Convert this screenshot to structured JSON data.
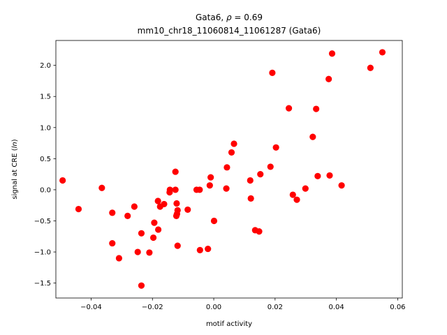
{
  "chart_data": {
    "type": "scatter",
    "title_line1": "Gata6, ",
    "title_rho": "ρ",
    "title_line1_rest": " = 0.69",
    "title_line2": "mm10_chr18_11060814_11061287 (Gata6)",
    "xlabel": "motif activity",
    "ylabel_prefix": "signal at CRE (",
    "ylabel_italic": "ln",
    "ylabel_suffix": ")",
    "xlim": [
      -0.0515,
      0.0615
    ],
    "ylim": [
      -1.74,
      2.4
    ],
    "xticks": [
      -0.04,
      -0.02,
      0.0,
      0.02,
      0.04,
      0.06
    ],
    "xtick_labels": [
      "−0.04",
      "−0.02",
      "0.00",
      "0.02",
      "0.04",
      "0.06"
    ],
    "yticks": [
      -1.5,
      -1.0,
      -0.5,
      0.0,
      0.5,
      1.0,
      1.5,
      2.0
    ],
    "ytick_labels": [
      "−1.5",
      "−1.0",
      "−0.5",
      "0.0",
      "0.5",
      "1.0",
      "1.5",
      "2.0"
    ],
    "grid": false,
    "marker_color": "#ff0000",
    "points": [
      {
        "x": -0.0493,
        "y": 0.15
      },
      {
        "x": -0.0441,
        "y": -0.31
      },
      {
        "x": -0.0365,
        "y": 0.03
      },
      {
        "x": -0.0331,
        "y": -0.37
      },
      {
        "x": -0.0331,
        "y": -0.86
      },
      {
        "x": -0.0309,
        "y": -1.1
      },
      {
        "x": -0.0281,
        "y": -0.42
      },
      {
        "x": -0.0259,
        "y": -0.27
      },
      {
        "x": -0.0248,
        "y": -1.0
      },
      {
        "x": -0.0236,
        "y": -0.7
      },
      {
        "x": -0.0236,
        "y": -1.54
      },
      {
        "x": -0.021,
        "y": -1.01
      },
      {
        "x": -0.0197,
        "y": -0.77
      },
      {
        "x": -0.0194,
        "y": -0.53
      },
      {
        "x": -0.0182,
        "y": -0.18
      },
      {
        "x": -0.0181,
        "y": -0.64
      },
      {
        "x": -0.0175,
        "y": -0.27
      },
      {
        "x": -0.0162,
        "y": -0.23
      },
      {
        "x": -0.0144,
        "y": -0.04
      },
      {
        "x": -0.0143,
        "y": 0.0
      },
      {
        "x": -0.0125,
        "y": 0.0
      },
      {
        "x": -0.0125,
        "y": 0.29
      },
      {
        "x": -0.0122,
        "y": -0.42
      },
      {
        "x": -0.0121,
        "y": -0.22
      },
      {
        "x": -0.012,
        "y": -0.39
      },
      {
        "x": -0.0118,
        "y": -0.33
      },
      {
        "x": -0.0118,
        "y": -0.9
      },
      {
        "x": -0.0085,
        "y": -0.32
      },
      {
        "x": -0.0056,
        "y": 0.0
      },
      {
        "x": -0.0046,
        "y": 0.0
      },
      {
        "x": -0.0045,
        "y": -0.97
      },
      {
        "x": -0.0019,
        "y": -0.95
      },
      {
        "x": -0.0013,
        "y": 0.07
      },
      {
        "x": -0.001,
        "y": 0.2
      },
      {
        "x": 0.0001,
        "y": -0.5
      },
      {
        "x": 0.0041,
        "y": 0.02
      },
      {
        "x": 0.0043,
        "y": 0.36
      },
      {
        "x": 0.0058,
        "y": 0.6
      },
      {
        "x": 0.0066,
        "y": 0.74
      },
      {
        "x": 0.0119,
        "y": 0.15
      },
      {
        "x": 0.0121,
        "y": -0.14
      },
      {
        "x": 0.0135,
        "y": -0.65
      },
      {
        "x": 0.0148,
        "y": -0.67
      },
      {
        "x": 0.0152,
        "y": 0.25
      },
      {
        "x": 0.0185,
        "y": 0.37
      },
      {
        "x": 0.0191,
        "y": 1.88
      },
      {
        "x": 0.0203,
        "y": 0.68
      },
      {
        "x": 0.0245,
        "y": 1.31
      },
      {
        "x": 0.0258,
        "y": -0.08
      },
      {
        "x": 0.0271,
        "y": -0.16
      },
      {
        "x": 0.0299,
        "y": 0.02
      },
      {
        "x": 0.0323,
        "y": 0.85
      },
      {
        "x": 0.0334,
        "y": 1.3
      },
      {
        "x": 0.0339,
        "y": 0.22
      },
      {
        "x": 0.0375,
        "y": 1.78
      },
      {
        "x": 0.0378,
        "y": 0.23
      },
      {
        "x": 0.0386,
        "y": 2.19
      },
      {
        "x": 0.0417,
        "y": 0.07
      },
      {
        "x": 0.0511,
        "y": 1.96
      },
      {
        "x": 0.055,
        "y": 2.21
      }
    ]
  }
}
